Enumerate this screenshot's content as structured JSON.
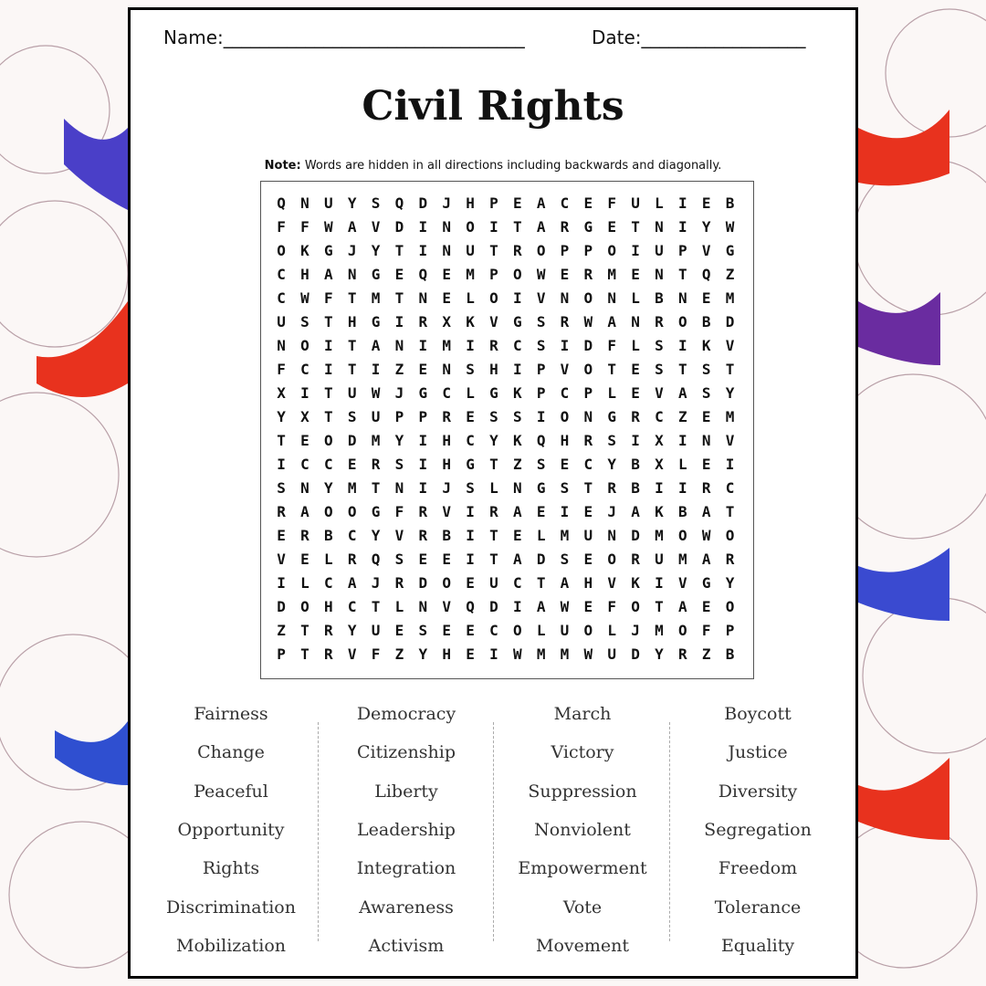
{
  "header": {
    "name": "Name:_________________________________",
    "date": "Date:__________________"
  },
  "title": "Civil Rights",
  "note": {
    "label": "Note:",
    "text": "Words are hidden in all directions including backwards and diagonally."
  },
  "grid": {
    "rows": [
      "Q N U Y S Q D J H P E A C E F U L I E B",
      "F F W A V D I N O I T A R G E T N I Y W",
      "O K G J Y T I N U T R O P P O I U P V G",
      "C H A N G E Q E M P O W E R M E N T Q Z",
      "C W F T M T N E L O I V N O N L B N E M",
      "U S T H G I R X K V G S R W A N R O B D",
      "N O I T A N I M I R C S I D F L S I K V",
      "F C I T I Z E N S H I P V O T E S T S T",
      "X I T U W J G C L G K P C P L E V A S Y",
      "Y X T S U P P R E S S I O N G R C Z E M",
      "T E O D M Y I H C Y K Q H R S I X I N V",
      "I C C E R S I H G T Z S E C Y B X L E I",
      "S N Y M T N I J S L N G S T R B I I R C",
      "R A O O G F R V I R A E I E J A K B A T",
      "E R B C Y V R B I T E L M U N D M O W O",
      "V E L R Q S E E I T A D S E O R U M A R",
      "I L C A J R D O E U C T A H V K I V G Y",
      "D O H C T L N V Q D I A W E F O T A E O",
      "Z T R Y U E S E E C O L U O L J M O F P",
      "P T R V F Z Y H E I W M M W U D Y R Z B"
    ]
  },
  "words": [
    [
      "Fairness",
      "Change",
      "Peaceful",
      "Opportunity",
      "Rights",
      "Discrimination",
      "Mobilization"
    ],
    [
      "Democracy",
      "Citizenship",
      "Liberty",
      "Leadership",
      "Integration",
      "Awareness",
      "Activism"
    ],
    [
      "March",
      "Victory",
      "Suppression",
      "Nonviolent",
      "Empowerment",
      "Vote",
      "Movement"
    ],
    [
      "Boycott",
      "Justice",
      "Diversity",
      "Segregation",
      "Freedom",
      "Tolerance",
      "Equality"
    ]
  ]
}
